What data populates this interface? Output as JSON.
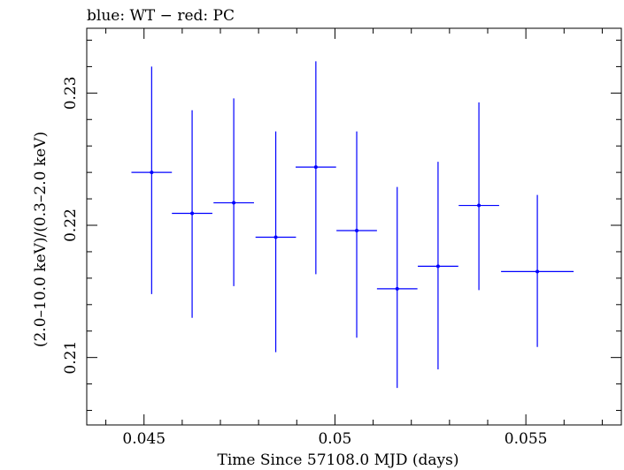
{
  "chart_data": {
    "type": "scatter",
    "title": "blue: WT − red: PC",
    "xlabel": "Time Since 57108.0 MJD (days)",
    "ylabel": "(2.0–10.0 keV)/(0.3–2.0 keV)",
    "xlim": [
      0.0435,
      0.0575
    ],
    "ylim": [
      0.2049,
      0.2349
    ],
    "x_ticks": [
      0.045,
      0.05,
      0.055
    ],
    "x_tick_labels": [
      "0.045",
      "0.05",
      "0.055"
    ],
    "y_ticks": [
      0.21,
      0.22,
      0.23
    ],
    "y_tick_labels": [
      "0.21",
      "0.22",
      "0.23"
    ],
    "grid": false,
    "series": [
      {
        "color": "#0000ff",
        "points": [
          {
            "x": 0.0452,
            "y": 0.224,
            "xerr": 0.00053,
            "yerr_low": 0.0092,
            "yerr_high": 0.008
          },
          {
            "x": 0.04626,
            "y": 0.2209,
            "xerr": 0.00053,
            "yerr_low": 0.0079,
            "yerr_high": 0.0078
          },
          {
            "x": 0.04735,
            "y": 0.2217,
            "xerr": 0.00053,
            "yerr_low": 0.0063,
            "yerr_high": 0.0079
          },
          {
            "x": 0.04845,
            "y": 0.2191,
            "xerr": 0.00053,
            "yerr_low": 0.0087,
            "yerr_high": 0.008
          },
          {
            "x": 0.0495,
            "y": 0.2244,
            "xerr": 0.00053,
            "yerr_low": 0.0081,
            "yerr_high": 0.008
          },
          {
            "x": 0.05057,
            "y": 0.2196,
            "xerr": 0.00053,
            "yerr_low": 0.0081,
            "yerr_high": 0.0075
          },
          {
            "x": 0.05163,
            "y": 0.2152,
            "xerr": 0.00053,
            "yerr_low": 0.0075,
            "yerr_high": 0.0077
          },
          {
            "x": 0.0527,
            "y": 0.2169,
            "xerr": 0.00053,
            "yerr_low": 0.0078,
            "yerr_high": 0.0079
          },
          {
            "x": 0.05377,
            "y": 0.2215,
            "xerr": 0.00053,
            "yerr_low": 0.0064,
            "yerr_high": 0.0078
          },
          {
            "x": 0.0553,
            "y": 0.2165,
            "xerr": 0.00095,
            "yerr_low": 0.0057,
            "yerr_high": 0.0058
          }
        ]
      }
    ]
  }
}
